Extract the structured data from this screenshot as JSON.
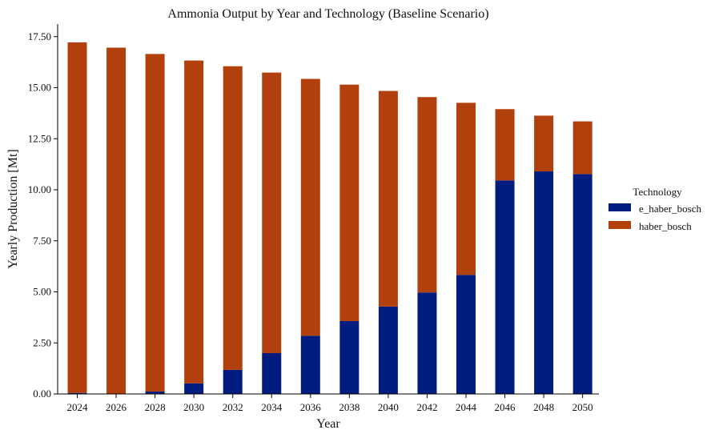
{
  "chart_data": {
    "type": "bar",
    "stacked": true,
    "title": "Ammonia Output by Year and Technology (Baseline Scenario)",
    "xlabel": "Year",
    "ylabel": "Yearly Production [Mt]",
    "ylim": [
      0,
      18.2
    ],
    "yticks": [
      0,
      2.5,
      5,
      7.5,
      10,
      12.5,
      15,
      17.5
    ],
    "ytick_labels": [
      "0.00",
      "2.50",
      "5.00",
      "7.50",
      "10.00",
      "12.50",
      "15.00",
      "17.50"
    ],
    "categories": [
      "2024",
      "2026",
      "2028",
      "2030",
      "2032",
      "2034",
      "2036",
      "2038",
      "2040",
      "2042",
      "2044",
      "2046",
      "2048",
      "2050"
    ],
    "legend": {
      "title": "Technology",
      "placement": "center-right"
    },
    "grid": false,
    "series": [
      {
        "name": "e_haber_bosch",
        "color": "#001c7f",
        "values": [
          0.05,
          0.0,
          0.12,
          0.52,
          1.18,
          2.0,
          2.85,
          3.57,
          4.28,
          4.97,
          5.83,
          10.46,
          10.9,
          10.77
        ]
      },
      {
        "name": "haber_bosch",
        "color": "#b1400d",
        "values": [
          17.17,
          16.96,
          16.53,
          15.81,
          14.87,
          13.74,
          12.58,
          11.58,
          10.56,
          9.57,
          8.43,
          3.49,
          2.73,
          2.58
        ]
      }
    ]
  }
}
